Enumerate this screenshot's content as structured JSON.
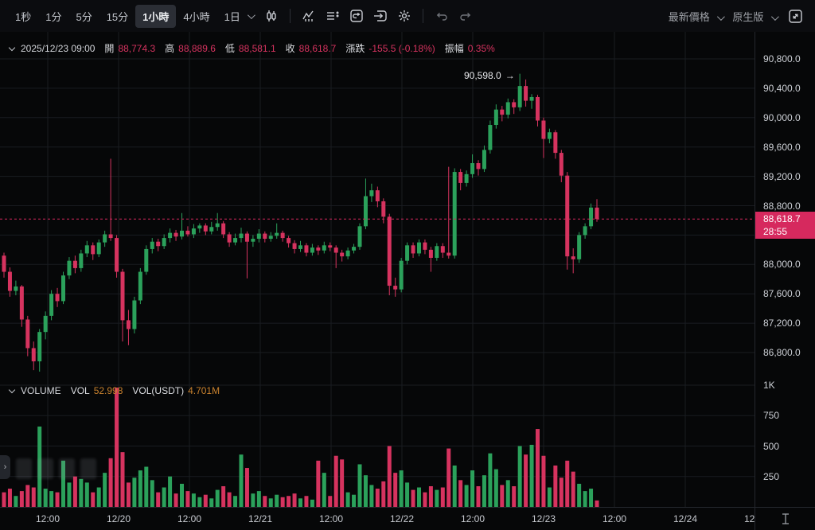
{
  "toolbar": {
    "intervals": [
      {
        "label": "1秒",
        "active": false
      },
      {
        "label": "1分",
        "active": false
      },
      {
        "label": "5分",
        "active": false
      },
      {
        "label": "15分",
        "active": false
      },
      {
        "label": "1小時",
        "active": true
      },
      {
        "label": "4小時",
        "active": false
      },
      {
        "label": "1日",
        "active": false,
        "dropdown": true
      }
    ],
    "icons": [
      "candle-style",
      "indicators",
      "indicator-list",
      "replay",
      "order-panel",
      "settings",
      "undo",
      "redo"
    ],
    "right": [
      {
        "label": "最新價格",
        "dropdown": true
      },
      {
        "label": "原生版",
        "dropdown": true
      }
    ]
  },
  "info_bar": {
    "datetime": "2025/12/23 09:00",
    "fields": [
      {
        "label": "開",
        "value": "88,774.3"
      },
      {
        "label": "高",
        "value": "88,889.6"
      },
      {
        "label": "低",
        "value": "88,581.1"
      },
      {
        "label": "收",
        "value": "88,618.7"
      },
      {
        "label": "漲跌",
        "value": "-155.5 (-0.18%)"
      },
      {
        "label": "振幅",
        "value": "0.35%"
      }
    ]
  },
  "volume_header": {
    "title": "VOLUME",
    "fields": [
      {
        "label": "VOL",
        "value": "52.998"
      },
      {
        "label": "VOL(USDT)",
        "value": "4.701M"
      }
    ]
  },
  "colors": {
    "up": "#2ba15b",
    "down": "#d6335f",
    "badge": "#d6295e",
    "grid": "#191c21",
    "value_orange": "#c9822e"
  },
  "chart_data": {
    "type": "candlestick",
    "interval": "1小時",
    "title": "",
    "price_axis_ticks": [
      90800,
      90400,
      90000,
      89600,
      89200,
      88800,
      88000,
      87600,
      87200,
      86800
    ],
    "price_gridlines": [
      90800,
      90400,
      90000,
      89600,
      89200,
      88800,
      88400,
      88000,
      87600,
      87200,
      86800
    ],
    "volume_axis_ticks": [
      {
        "label": "1K",
        "value": 1000
      },
      {
        "label": "750",
        "value": 750
      },
      {
        "label": "500",
        "value": 500
      },
      {
        "label": "250",
        "value": 250
      }
    ],
    "time_axis_ticks": [
      "12:00",
      "12/20",
      "12:00",
      "12/21",
      "12:00",
      "12/22",
      "12:00",
      "12/23",
      "12:00",
      "12/24",
      "12:00"
    ],
    "last_price": "88,618.7",
    "countdown": "28:55",
    "high_annotation": "90,598.0",
    "price_range": [
      86500,
      91170
    ],
    "grid": true,
    "candles_format": [
      "time",
      "open",
      "high",
      "low",
      "close",
      "volume"
    ],
    "candles": [
      [
        "12/19 05:00",
        88120,
        88160,
        87820,
        87900,
        120
      ],
      [
        "12/19 06:00",
        87900,
        87960,
        87560,
        87640,
        150
      ],
      [
        "12/19 07:00",
        87640,
        87780,
        87580,
        87700,
        90
      ],
      [
        "12/19 08:00",
        87700,
        87720,
        87150,
        87250,
        130
      ],
      [
        "12/19 09:00",
        87250,
        87300,
        86750,
        86860,
        180
      ],
      [
        "12/19 10:00",
        86860,
        86950,
        86560,
        86680,
        160
      ],
      [
        "12/19 11:00",
        86680,
        87120,
        86540,
        87080,
        660
      ],
      [
        "12/19 12:00",
        87080,
        87360,
        86980,
        87300,
        150
      ],
      [
        "12/19 13:00",
        87300,
        87650,
        87240,
        87600,
        130
      ],
      [
        "12/19 14:00",
        87600,
        87680,
        87420,
        87500,
        120
      ],
      [
        "12/19 15:00",
        87500,
        87900,
        87460,
        87850,
        380
      ],
      [
        "12/19 16:00",
        87850,
        88100,
        87800,
        88050,
        200
      ],
      [
        "12/19 17:00",
        88050,
        88120,
        87880,
        87950,
        250
      ],
      [
        "12/19 18:00",
        87950,
        88200,
        87900,
        88150,
        230
      ],
      [
        "12/19 19:00",
        88150,
        88320,
        88100,
        88260,
        200
      ],
      [
        "12/19 20:00",
        88260,
        88300,
        88060,
        88140,
        120
      ],
      [
        "12/19 21:00",
        88140,
        88340,
        88100,
        88300,
        160
      ],
      [
        "12/19 22:00",
        88300,
        88460,
        88240,
        88410,
        280
      ],
      [
        "12/19 23:00",
        88410,
        89440,
        88320,
        88360,
        400
      ],
      [
        "12/20 00:00",
        88360,
        88400,
        87820,
        87900,
        980
      ],
      [
        "12/20 01:00",
        87900,
        87940,
        86950,
        87240,
        450
      ],
      [
        "12/20 02:00",
        87240,
        87380,
        86900,
        87120,
        200
      ],
      [
        "12/20 03:00",
        87120,
        87560,
        87060,
        87510,
        240
      ],
      [
        "12/20 04:00",
        87510,
        87950,
        87460,
        87900,
        300
      ],
      [
        "12/20 05:00",
        87900,
        88260,
        87860,
        88210,
        330
      ],
      [
        "12/20 06:00",
        88210,
        88360,
        88150,
        88310,
        220
      ],
      [
        "12/20 07:00",
        88310,
        88350,
        88180,
        88250,
        120
      ],
      [
        "12/20 08:00",
        88250,
        88410,
        88210,
        88360,
        160
      ],
      [
        "12/20 09:00",
        88360,
        88490,
        88300,
        88430,
        250
      ],
      [
        "12/20 10:00",
        88430,
        88470,
        88320,
        88380,
        110
      ],
      [
        "12/20 11:00",
        88380,
        88700,
        88340,
        88460,
        190
      ],
      [
        "12/20 12:00",
        88460,
        88520,
        88380,
        88410,
        130
      ],
      [
        "12/20 13:00",
        88410,
        88550,
        88360,
        88490,
        110
      ],
      [
        "12/20 14:00",
        88490,
        88560,
        88430,
        88530,
        80
      ],
      [
        "12/20 15:00",
        88530,
        88560,
        88400,
        88450,
        100
      ],
      [
        "12/20 16:00",
        88450,
        88580,
        88410,
        88510,
        70
      ],
      [
        "12/20 17:00",
        88510,
        88700,
        88460,
        88560,
        140
      ],
      [
        "12/20 18:00",
        88560,
        88590,
        88360,
        88410,
        170
      ],
      [
        "12/20 19:00",
        88410,
        88440,
        88240,
        88300,
        120
      ],
      [
        "12/20 20:00",
        88300,
        88420,
        88260,
        88360,
        90
      ],
      [
        "12/20 21:00",
        88360,
        88500,
        88300,
        88420,
        430
      ],
      [
        "12/20 22:00",
        88420,
        88450,
        87810,
        88310,
        320
      ],
      [
        "12/20 23:00",
        88310,
        88400,
        88240,
        88350,
        110
      ],
      [
        "12/21 00:00",
        88350,
        88480,
        88300,
        88420,
        130
      ],
      [
        "12/21 01:00",
        88420,
        88450,
        88300,
        88350,
        90
      ],
      [
        "12/21 02:00",
        88350,
        88440,
        88310,
        88390,
        70
      ],
      [
        "12/21 03:00",
        88390,
        88560,
        88350,
        88430,
        100
      ],
      [
        "12/21 04:00",
        88430,
        88460,
        88310,
        88360,
        80
      ],
      [
        "12/21 05:00",
        88360,
        88390,
        88230,
        88290,
        90
      ],
      [
        "12/21 06:00",
        88290,
        88330,
        88150,
        88210,
        110
      ],
      [
        "12/21 07:00",
        88210,
        88320,
        88170,
        88260,
        70
      ],
      [
        "12/21 08:00",
        88260,
        88290,
        88110,
        88160,
        90
      ],
      [
        "12/21 09:00",
        88160,
        88280,
        88120,
        88230,
        60
      ],
      [
        "12/21 10:00",
        88230,
        88260,
        88130,
        88190,
        380
      ],
      [
        "12/21 11:00",
        88190,
        88310,
        88150,
        88260,
        280
      ],
      [
        "12/21 12:00",
        88260,
        88300,
        88180,
        88230,
        90
      ],
      [
        "12/21 13:00",
        88230,
        88260,
        87950,
        88160,
        420
      ],
      [
        "12/21 14:00",
        88160,
        88200,
        88040,
        88110,
        390
      ],
      [
        "12/21 15:00",
        88110,
        88230,
        88070,
        88190,
        120
      ],
      [
        "12/21 16:00",
        88190,
        88280,
        88150,
        88240,
        100
      ],
      [
        "12/21 17:00",
        88240,
        88560,
        88200,
        88520,
        350
      ],
      [
        "12/21 18:00",
        88520,
        89170,
        88480,
        88930,
        260
      ],
      [
        "12/21 19:00",
        88930,
        89100,
        88850,
        89010,
        180
      ],
      [
        "12/21 20:00",
        89010,
        89060,
        88780,
        88860,
        150
      ],
      [
        "12/21 21:00",
        88860,
        88900,
        88560,
        88650,
        210
      ],
      [
        "12/21 22:00",
        88650,
        88690,
        87580,
        87710,
        500
      ],
      [
        "12/21 23:00",
        87710,
        87820,
        87560,
        87660,
        280
      ],
      [
        "12/22 00:00",
        87660,
        88090,
        87620,
        88050,
        300
      ],
      [
        "12/22 01:00",
        88050,
        88300,
        88000,
        88260,
        200
      ],
      [
        "12/22 02:00",
        88260,
        88300,
        88090,
        88150,
        140
      ],
      [
        "12/22 03:00",
        88150,
        88340,
        88110,
        88300,
        160
      ],
      [
        "12/22 04:00",
        88300,
        88340,
        88140,
        88200,
        120
      ],
      [
        "12/22 05:00",
        88200,
        88240,
        87900,
        88090,
        170
      ],
      [
        "12/22 06:00",
        88090,
        88290,
        88050,
        88250,
        140
      ],
      [
        "12/22 07:00",
        88250,
        88290,
        88090,
        88160,
        160
      ],
      [
        "12/22 08:00",
        88160,
        89330,
        88080,
        88120,
        480
      ],
      [
        "12/22 09:00",
        88120,
        89310,
        88080,
        89260,
        340
      ],
      [
        "12/22 10:00",
        89260,
        89300,
        89010,
        89110,
        220
      ],
      [
        "12/22 11:00",
        89110,
        89280,
        89060,
        89230,
        180
      ],
      [
        "12/22 12:00",
        89230,
        89500,
        89180,
        89380,
        300
      ],
      [
        "12/22 13:00",
        89380,
        89420,
        89210,
        89300,
        170
      ],
      [
        "12/22 14:00",
        89300,
        89620,
        89260,
        89560,
        260
      ],
      [
        "12/22 15:00",
        89560,
        89960,
        89510,
        89900,
        440
      ],
      [
        "12/22 16:00",
        89900,
        90180,
        89850,
        90110,
        310
      ],
      [
        "12/22 17:00",
        90110,
        90160,
        89950,
        90040,
        180
      ],
      [
        "12/22 18:00",
        90040,
        90260,
        89990,
        90210,
        220
      ],
      [
        "12/22 19:00",
        90210,
        90250,
        90050,
        90140,
        170
      ],
      [
        "12/22 20:00",
        90140,
        90598,
        90090,
        90430,
        500
      ],
      [
        "12/22 21:00",
        90430,
        90520,
        90150,
        90230,
        430
      ],
      [
        "12/22 22:00",
        90230,
        90320,
        90120,
        90280,
        510
      ],
      [
        "12/22 23:00",
        90280,
        90310,
        89880,
        89960,
        640
      ],
      [
        "12/23 00:00",
        89960,
        90000,
        89450,
        89710,
        420
      ],
      [
        "12/23 01:00",
        89710,
        89850,
        89650,
        89800,
        160
      ],
      [
        "12/23 02:00",
        89800,
        89830,
        89440,
        89520,
        340
      ],
      [
        "12/23 03:00",
        89520,
        89560,
        89120,
        89210,
        240
      ],
      [
        "12/23 04:00",
        89210,
        89260,
        87930,
        88110,
        380
      ],
      [
        "12/23 05:00",
        88110,
        88220,
        87880,
        88070,
        290
      ],
      [
        "12/23 06:00",
        88070,
        88440,
        88020,
        88400,
        190
      ],
      [
        "12/23 07:00",
        88400,
        88560,
        88350,
        88520,
        130
      ],
      [
        "12/23 08:00",
        88520,
        88830,
        88480,
        88774.3,
        150
      ],
      [
        "12/23 09:00",
        88774.3,
        88889.6,
        88581.1,
        88618.7,
        53
      ]
    ]
  }
}
